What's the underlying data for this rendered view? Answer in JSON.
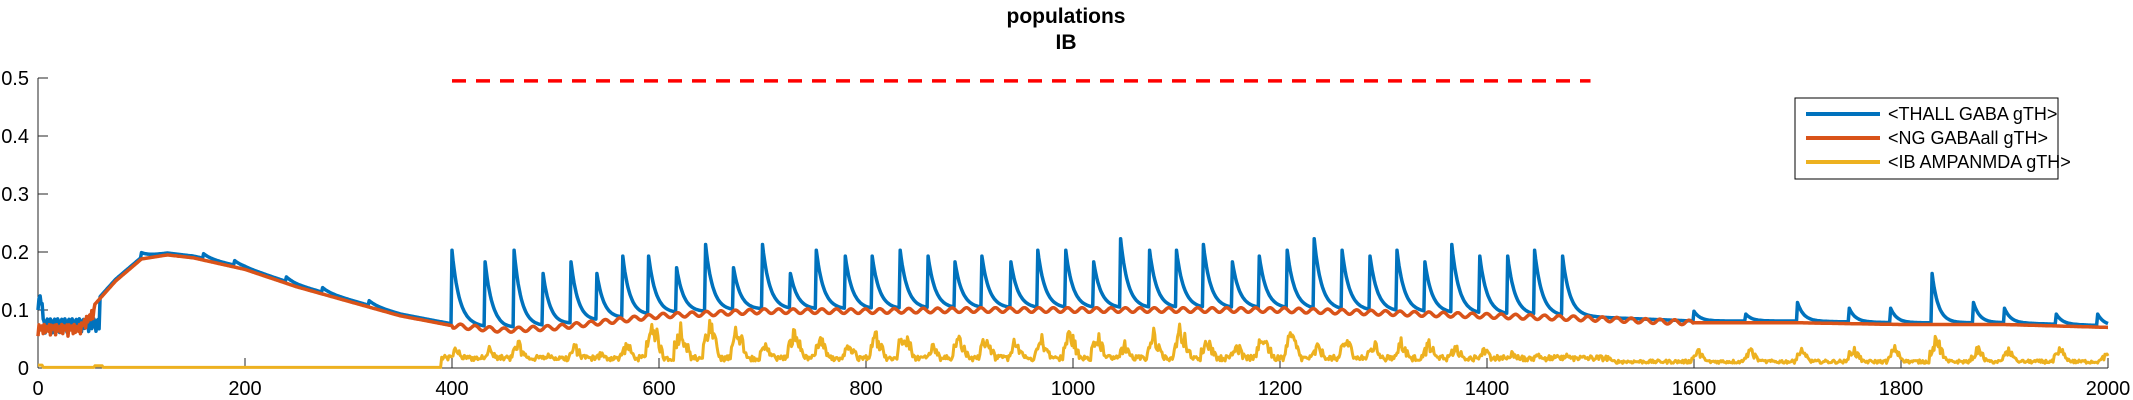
{
  "chart_data": {
    "type": "line",
    "title": [
      "populations",
      "IB"
    ],
    "xlabel": "",
    "ylabel": "",
    "xlim": [
      0,
      2000
    ],
    "ylim": [
      0,
      0.5
    ],
    "xticks": [
      0,
      200,
      400,
      600,
      800,
      1000,
      1200,
      1400,
      1600,
      1800,
      2000
    ],
    "yticks": [
      0,
      0.1,
      0.2,
      0.3,
      0.4,
      0.5
    ],
    "ytick_labels": [
      "0",
      "0.1",
      "0.2",
      "0.3",
      "0.4",
      "0.5"
    ],
    "legend": {
      "placement": "top-right"
    },
    "series": [
      {
        "name": "<THALL GABA gTH>",
        "color": "#0072BD"
      },
      {
        "name": "<NG GABAall gTH>",
        "color": "#D95319"
      },
      {
        "name": "<IB AMPANMDA gTH>",
        "color": "#EDB120"
      }
    ],
    "annotation_line": {
      "x": [
        400,
        1500
      ],
      "y": 0.495,
      "color": "#FF0000",
      "style": "dashed"
    },
    "thall_pulse_times": [
      400,
      432,
      460,
      488,
      515,
      540,
      565,
      590,
      617,
      645,
      672,
      700,
      727,
      752,
      780,
      806,
      833,
      860,
      886,
      912,
      940,
      966,
      993,
      1020,
      1046,
      1074,
      1100,
      1126,
      1154,
      1180,
      1207,
      1233,
      1260,
      1287,
      1313,
      1340,
      1366,
      1393,
      1420,
      1446,
      1473
    ],
    "thall_pulse_peaks": [
      0.2,
      0.18,
      0.2,
      0.16,
      0.18,
      0.16,
      0.19,
      0.19,
      0.17,
      0.21,
      0.17,
      0.21,
      0.16,
      0.2,
      0.19,
      0.19,
      0.2,
      0.19,
      0.18,
      0.19,
      0.18,
      0.2,
      0.2,
      0.18,
      0.22,
      0.2,
      0.2,
      0.21,
      0.18,
      0.19,
      0.2,
      0.22,
      0.2,
      0.19,
      0.2,
      0.18,
      0.21,
      0.19,
      0.19,
      0.2,
      0.19
    ],
    "thall_late_bumps": [
      {
        "x": 1600,
        "peak": 0.095
      },
      {
        "x": 1650,
        "peak": 0.09
      },
      {
        "x": 1700,
        "peak": 0.11
      },
      {
        "x": 1750,
        "peak": 0.1
      },
      {
        "x": 1790,
        "peak": 0.1
      },
      {
        "x": 1830,
        "peak": 0.16
      },
      {
        "x": 1870,
        "peak": 0.11
      },
      {
        "x": 1900,
        "peak": 0.1
      },
      {
        "x": 1950,
        "peak": 0.09
      },
      {
        "x": 1990,
        "peak": 0.09
      }
    ],
    "ng_envelope": [
      [
        0,
        0.07
      ],
      [
        20,
        0.075
      ],
      [
        40,
        0.085
      ],
      [
        50,
        0.1
      ],
      [
        75,
        0.15
      ],
      [
        100,
        0.188
      ],
      [
        125,
        0.195
      ],
      [
        150,
        0.19
      ],
      [
        200,
        0.17
      ],
      [
        250,
        0.14
      ],
      [
        300,
        0.115
      ],
      [
        350,
        0.09
      ],
      [
        400,
        0.073
      ],
      [
        450,
        0.065
      ],
      [
        500,
        0.07
      ],
      [
        600,
        0.09
      ],
      [
        700,
        0.098
      ],
      [
        800,
        0.098
      ],
      [
        900,
        0.1
      ],
      [
        1000,
        0.1
      ],
      [
        1100,
        0.1
      ],
      [
        1200,
        0.1
      ],
      [
        1300,
        0.095
      ],
      [
        1400,
        0.09
      ],
      [
        1500,
        0.085
      ],
      [
        1600,
        0.078
      ],
      [
        1700,
        0.078
      ],
      [
        1800,
        0.075
      ],
      [
        1900,
        0.075
      ],
      [
        2000,
        0.07
      ]
    ],
    "ib_bursts": [
      {
        "x": 400,
        "peak": 0.04
      },
      {
        "x": 432,
        "peak": 0.04
      },
      {
        "x": 460,
        "peak": 0.05
      },
      {
        "x": 488,
        "peak": 0.03
      },
      {
        "x": 515,
        "peak": 0.045
      },
      {
        "x": 540,
        "peak": 0.03
      },
      {
        "x": 565,
        "peak": 0.05
      },
      {
        "x": 590,
        "peak": 0.095
      },
      {
        "x": 617,
        "peak": 0.085
      },
      {
        "x": 645,
        "peak": 0.09
      },
      {
        "x": 672,
        "peak": 0.085
      },
      {
        "x": 700,
        "peak": 0.05
      },
      {
        "x": 727,
        "peak": 0.075
      },
      {
        "x": 752,
        "peak": 0.06
      },
      {
        "x": 780,
        "peak": 0.05
      },
      {
        "x": 806,
        "peak": 0.07
      },
      {
        "x": 833,
        "peak": 0.08
      },
      {
        "x": 860,
        "peak": 0.05
      },
      {
        "x": 886,
        "peak": 0.065
      },
      {
        "x": 912,
        "peak": 0.065
      },
      {
        "x": 940,
        "peak": 0.055
      },
      {
        "x": 966,
        "peak": 0.06
      },
      {
        "x": 993,
        "peak": 0.075
      },
      {
        "x": 1020,
        "peak": 0.065
      },
      {
        "x": 1046,
        "peak": 0.05
      },
      {
        "x": 1074,
        "peak": 0.07
      },
      {
        "x": 1100,
        "peak": 0.085
      },
      {
        "x": 1126,
        "peak": 0.06
      },
      {
        "x": 1154,
        "peak": 0.05
      },
      {
        "x": 1180,
        "peak": 0.07
      },
      {
        "x": 1207,
        "peak": 0.07
      },
      {
        "x": 1233,
        "peak": 0.045
      },
      {
        "x": 1260,
        "peak": 0.06
      },
      {
        "x": 1287,
        "peak": 0.05
      },
      {
        "x": 1313,
        "peak": 0.055
      },
      {
        "x": 1340,
        "peak": 0.05
      },
      {
        "x": 1366,
        "peak": 0.045
      },
      {
        "x": 1393,
        "peak": 0.04
      },
      {
        "x": 1420,
        "peak": 0.03
      },
      {
        "x": 1446,
        "peak": 0.03
      },
      {
        "x": 1473,
        "peak": 0.025
      }
    ],
    "ib_late_bursts": [
      {
        "x": 1600,
        "peak": 0.035
      },
      {
        "x": 1650,
        "peak": 0.04
      },
      {
        "x": 1700,
        "peak": 0.035
      },
      {
        "x": 1750,
        "peak": 0.04
      },
      {
        "x": 1790,
        "peak": 0.04
      },
      {
        "x": 1830,
        "peak": 0.06
      },
      {
        "x": 1870,
        "peak": 0.04
      },
      {
        "x": 1900,
        "peak": 0.035
      },
      {
        "x": 1950,
        "peak": 0.04
      },
      {
        "x": 1995,
        "peak": 0.03
      }
    ]
  }
}
